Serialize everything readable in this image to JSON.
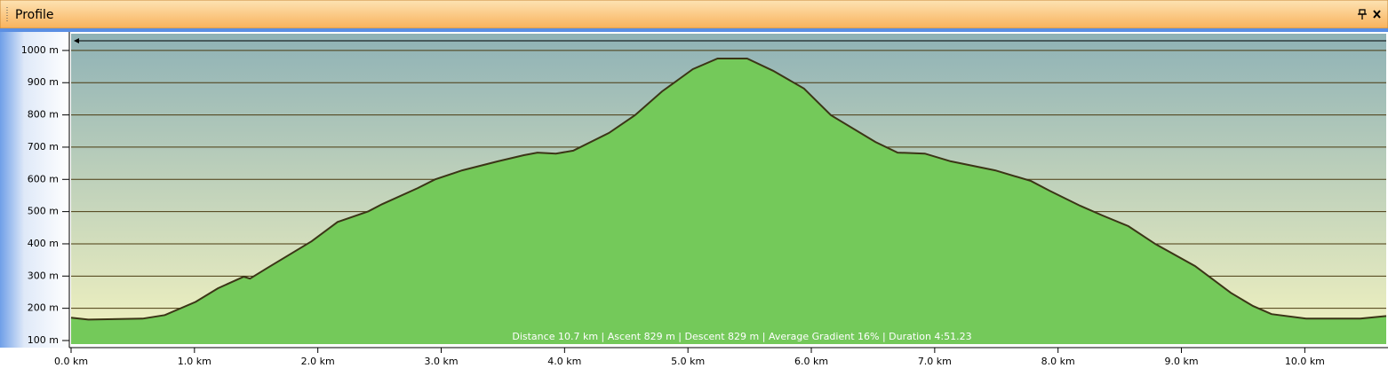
{
  "panel": {
    "title": "Profile"
  },
  "chart_data": {
    "type": "area",
    "annotation": "Distance 10.7 km | Ascent 829 m | Descent 829 m | Average Gradient 16% | Duration 4:51.23",
    "x": [
      0,
      0.14,
      0.58,
      0.76,
      1.01,
      1.19,
      1.4,
      1.45,
      1.59,
      1.95,
      2.16,
      2.41,
      2.52,
      2.81,
      2.95,
      3.17,
      3.46,
      3.67,
      3.78,
      3.93,
      4.07,
      4.36,
      4.57,
      4.79,
      5.04,
      5.24,
      5.48,
      5.69,
      5.94,
      6.16,
      6.52,
      6.7,
      6.92,
      7.13,
      7.49,
      7.78,
      7.93,
      8.18,
      8.36,
      8.57,
      8.79,
      9.11,
      9.4,
      9.58,
      9.73,
      10.01,
      10.45,
      10.66
    ],
    "values": [
      171,
      165,
      168,
      179,
      220,
      262,
      298,
      292,
      325,
      408,
      468,
      501,
      523,
      573,
      600,
      628,
      656,
      675,
      683,
      680,
      689,
      744,
      799,
      873,
      942,
      975,
      975,
      937,
      882,
      799,
      716,
      683,
      680,
      656,
      628,
      595,
      565,
      518,
      488,
      455,
      399,
      331,
      248,
      207,
      182,
      168,
      168,
      176
    ],
    "color": "#74c95a",
    "line_color": "#3b3516",
    "xlim": [
      0,
      10.66
    ],
    "ylim": [
      89,
      1052
    ],
    "grid": true,
    "xticks": [
      {
        "value": 0,
        "label": "0.0 km"
      },
      {
        "value": 1,
        "label": "1.0 km"
      },
      {
        "value": 2,
        "label": "2.0 km"
      },
      {
        "value": 3,
        "label": "3.0 km"
      },
      {
        "value": 4,
        "label": "4.0 km"
      },
      {
        "value": 5,
        "label": "5.0 km"
      },
      {
        "value": 6,
        "label": "6.0 km"
      },
      {
        "value": 7,
        "label": "7.0 km"
      },
      {
        "value": 8,
        "label": "8.0 km"
      },
      {
        "value": 9,
        "label": "9.0 km"
      },
      {
        "value": 10,
        "label": "10.0 km"
      }
    ],
    "yticks": [
      {
        "value": 100,
        "label": "100 m"
      },
      {
        "value": 200,
        "label": "200 m"
      },
      {
        "value": 300,
        "label": "300 m"
      },
      {
        "value": 400,
        "label": "400 m"
      },
      {
        "value": 500,
        "label": "500 m"
      },
      {
        "value": 600,
        "label": "600 m"
      },
      {
        "value": 700,
        "label": "700 m"
      },
      {
        "value": 800,
        "label": "800 m"
      },
      {
        "value": 900,
        "label": "900 m"
      },
      {
        "value": 1000,
        "label": "1000 m"
      }
    ]
  }
}
